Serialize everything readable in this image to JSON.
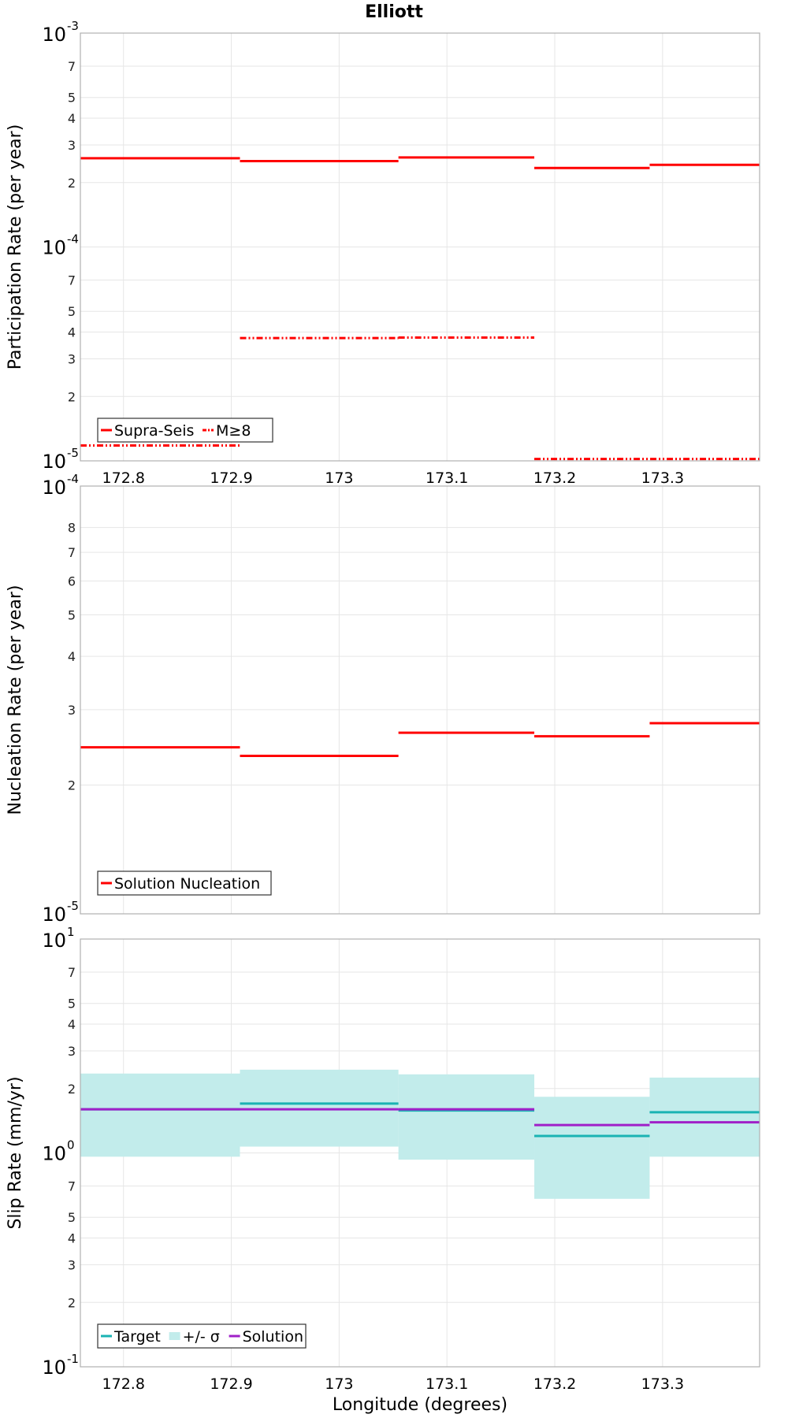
{
  "title": "Elliott",
  "colors": {
    "red": "#ff0000",
    "target": "#1ab3b3",
    "band": "#c2eceb",
    "solution": "#a020c8",
    "grid": "#e6e6e6",
    "frame": "#b0b0b0"
  },
  "chart_data": [
    {
      "type": "line",
      "ylabel": "Participation Rate (per year)",
      "yscale": "log",
      "ylim": [
        1e-05,
        0.001
      ],
      "xlim": [
        172.76,
        173.39
      ],
      "x_ticks": [
        "172.8",
        "172.9",
        "173",
        "173.1",
        "173.2",
        "173.3"
      ],
      "x_tick_values": [
        172.8,
        172.9,
        173.0,
        173.1,
        173.2,
        173.3
      ],
      "y_major_ticks": [
        {
          "value": 0.001,
          "base": "10",
          "exp": "-3"
        },
        {
          "value": 0.0001,
          "base": "10",
          "exp": "-4"
        },
        {
          "value": 1e-05,
          "base": "10",
          "exp": "-5"
        }
      ],
      "y_minor_ticks": [
        {
          "value": 0.0007,
          "label": "7"
        },
        {
          "value": 0.0005,
          "label": "5"
        },
        {
          "value": 0.0004,
          "label": "4"
        },
        {
          "value": 0.0003,
          "label": "3"
        },
        {
          "value": 0.0002,
          "label": "2"
        },
        {
          "value": 7e-05,
          "label": "7"
        },
        {
          "value": 5e-05,
          "label": "5"
        },
        {
          "value": 4e-05,
          "label": "4"
        },
        {
          "value": 3e-05,
          "label": "3"
        },
        {
          "value": 2e-05,
          "label": "2"
        }
      ],
      "series": [
        {
          "name": "Supra-Seis",
          "style": "solid",
          "segments": [
            {
              "x0": 172.76,
              "x1": 172.908,
              "y": 0.00026
            },
            {
              "x0": 172.908,
              "x1": 173.055,
              "y": 0.000252
            },
            {
              "x0": 173.055,
              "x1": 173.181,
              "y": 0.000262
            },
            {
              "x0": 173.181,
              "x1": 173.288,
              "y": 0.000234
            },
            {
              "x0": 173.288,
              "x1": 173.39,
              "y": 0.000242
            }
          ]
        },
        {
          "name": "M≥8",
          "style": "dashdot",
          "segments": [
            {
              "x0": 172.76,
              "x1": 172.908,
              "y": 1.18e-05
            },
            {
              "x0": 172.908,
              "x1": 173.055,
              "y": 3.75e-05
            },
            {
              "x0": 173.055,
              "x1": 173.181,
              "y": 3.77e-05
            },
            {
              "x0": 173.181,
              "x1": 173.39,
              "y": 1.02e-05
            }
          ]
        }
      ],
      "legend": "bottom-left"
    },
    {
      "type": "line",
      "ylabel": "Nucleation Rate (per year)",
      "yscale": "log",
      "ylim": [
        1e-05,
        0.0001
      ],
      "xlim": [
        172.76,
        173.39
      ],
      "x_tick_values": [
        172.8,
        172.9,
        173.0,
        173.1,
        173.2,
        173.3
      ],
      "y_major_ticks": [
        {
          "value": 0.0001,
          "base": "10",
          "exp": "-4"
        },
        {
          "value": 1e-05,
          "base": "10",
          "exp": "-5"
        }
      ],
      "y_minor_ticks": [
        {
          "value": 8e-05,
          "label": "8"
        },
        {
          "value": 7e-05,
          "label": "7"
        },
        {
          "value": 6e-05,
          "label": "6"
        },
        {
          "value": 5e-05,
          "label": "5"
        },
        {
          "value": 4e-05,
          "label": "4"
        },
        {
          "value": 3e-05,
          "label": "3"
        },
        {
          "value": 2e-05,
          "label": "2"
        }
      ],
      "series": [
        {
          "name": "Solution Nucleation",
          "style": "solid",
          "segments": [
            {
              "x0": 172.76,
              "x1": 172.908,
              "y": 2.45e-05
            },
            {
              "x0": 172.908,
              "x1": 173.055,
              "y": 2.34e-05
            },
            {
              "x0": 173.055,
              "x1": 173.181,
              "y": 2.65e-05
            },
            {
              "x0": 173.181,
              "x1": 173.288,
              "y": 2.6e-05
            },
            {
              "x0": 173.288,
              "x1": 173.39,
              "y": 2.79e-05
            }
          ]
        }
      ],
      "legend": "bottom-left"
    },
    {
      "type": "area",
      "ylabel": "Slip Rate (mm/yr)",
      "xlabel": "Longitude (degrees)",
      "yscale": "log",
      "ylim": [
        0.1,
        10
      ],
      "xlim": [
        172.76,
        173.39
      ],
      "x_ticks": [
        "172.8",
        "172.9",
        "173",
        "173.1",
        "173.2",
        "173.3"
      ],
      "x_tick_values": [
        172.8,
        172.9,
        173.0,
        173.1,
        173.2,
        173.3
      ],
      "y_major_ticks": [
        {
          "value": 10,
          "base": "10",
          "exp": "1"
        },
        {
          "value": 1,
          "base": "10",
          "exp": "0"
        },
        {
          "value": 0.1,
          "base": "10",
          "exp": "-1"
        }
      ],
      "y_minor_ticks": [
        {
          "value": 7,
          "label": "7"
        },
        {
          "value": 5,
          "label": "5"
        },
        {
          "value": 4,
          "label": "4"
        },
        {
          "value": 3,
          "label": "3"
        },
        {
          "value": 2,
          "label": "2"
        },
        {
          "value": 0.7,
          "label": "7"
        },
        {
          "value": 0.5,
          "label": "5"
        },
        {
          "value": 0.4,
          "label": "4"
        },
        {
          "value": 0.3,
          "label": "3"
        },
        {
          "value": 0.2,
          "label": "2"
        }
      ],
      "series": [
        {
          "name": "Target",
          "style": "solid",
          "segments": [
            {
              "x0": 172.76,
              "x1": 172.908,
              "y": 1.6
            },
            {
              "x0": 172.908,
              "x1": 173.055,
              "y": 1.7
            },
            {
              "x0": 173.055,
              "x1": 173.181,
              "y": 1.58
            },
            {
              "x0": 173.181,
              "x1": 173.288,
              "y": 1.2
            },
            {
              "x0": 173.288,
              "x1": 173.39,
              "y": 1.55
            }
          ]
        },
        {
          "name": "+/- σ",
          "style": "band",
          "segments": [
            {
              "x0": 172.76,
              "x1": 172.908,
              "lo": 0.96,
              "hi": 2.35
            },
            {
              "x0": 172.908,
              "x1": 173.055,
              "lo": 1.07,
              "hi": 2.45
            },
            {
              "x0": 173.055,
              "x1": 173.181,
              "lo": 0.93,
              "hi": 2.33
            },
            {
              "x0": 173.181,
              "x1": 173.288,
              "lo": 0.61,
              "hi": 1.83
            },
            {
              "x0": 173.288,
              "x1": 173.39,
              "lo": 0.96,
              "hi": 2.25
            }
          ]
        },
        {
          "name": "Solution",
          "style": "solid",
          "segments": [
            {
              "x0": 172.76,
              "x1": 172.908,
              "y": 1.6
            },
            {
              "x0": 172.908,
              "x1": 173.055,
              "y": 1.6
            },
            {
              "x0": 173.055,
              "x1": 173.181,
              "y": 1.6
            },
            {
              "x0": 173.181,
              "x1": 173.288,
              "y": 1.35
            },
            {
              "x0": 173.288,
              "x1": 173.39,
              "y": 1.39
            }
          ]
        }
      ],
      "legend": "bottom-left"
    }
  ]
}
